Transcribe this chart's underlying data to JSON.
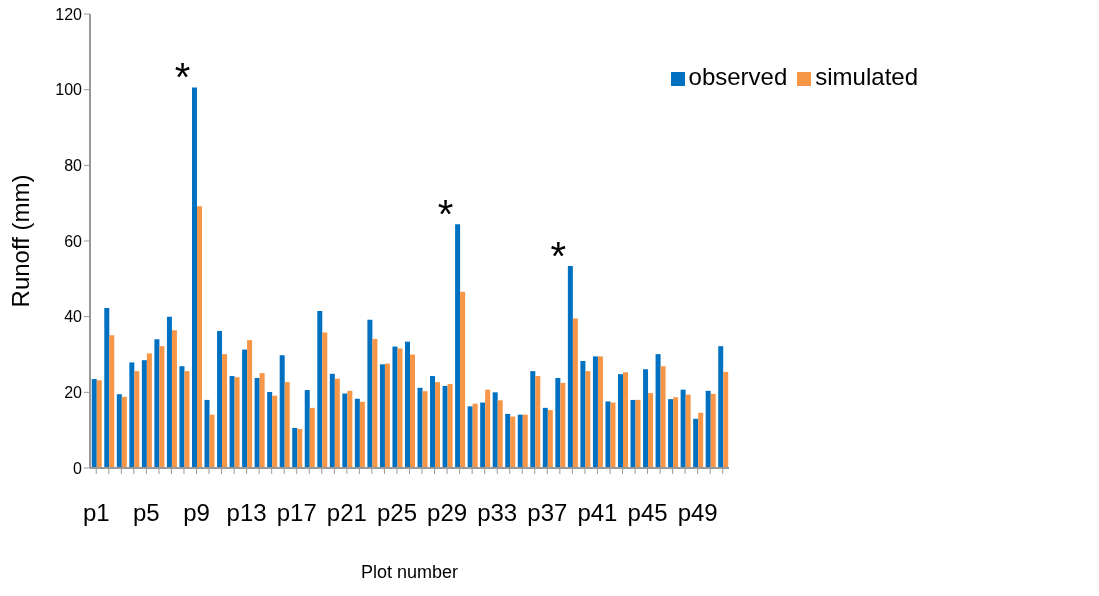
{
  "chart_data": {
    "type": "bar",
    "xlabel": "Plot number",
    "ylabel": "Runoff (mm)",
    "categories": [
      "p1",
      null,
      null,
      null,
      "p5",
      null,
      null,
      null,
      "p9",
      null,
      null,
      null,
      "p13",
      null,
      null,
      null,
      "p17",
      null,
      null,
      null,
      "p21",
      null,
      null,
      null,
      "p25",
      null,
      null,
      null,
      "p29",
      null,
      null,
      null,
      "p33",
      null,
      null,
      null,
      "p37",
      null,
      null,
      null,
      "p41",
      null,
      null,
      null,
      "p45",
      null,
      null,
      null,
      "p49",
      null,
      null
    ],
    "series": [
      {
        "name": "observed",
        "color": "#0070c0",
        "values": [
          23.5,
          42.3,
          19.5,
          27.9,
          28.5,
          34.0,
          40.0,
          26.9,
          100.6,
          18.0,
          36.2,
          24.3,
          31.3,
          23.8,
          20.1,
          29.8,
          10.6,
          20.6,
          41.5,
          24.9,
          19.7,
          18.3,
          39.2,
          27.4,
          32.1,
          33.4,
          21.2,
          24.3,
          21.7,
          64.4,
          16.3,
          17.3,
          20.0,
          14.3,
          14.1,
          25.6,
          15.9,
          23.8,
          53.4,
          28.3,
          29.5,
          17.6,
          24.8,
          18.0,
          26.1,
          30.1,
          18.2,
          20.7,
          13.0,
          20.4,
          32.2
        ]
      },
      {
        "name": "simulated",
        "color": "#f79646",
        "values": [
          23.2,
          35.1,
          18.8,
          25.6,
          30.3,
          32.2,
          36.4,
          25.6,
          69.2,
          14.1,
          30.1,
          24.0,
          33.8,
          25.1,
          19.1,
          22.7,
          10.3,
          15.9,
          35.8,
          23.6,
          20.4,
          17.5,
          34.1,
          27.6,
          31.6,
          30.0,
          20.3,
          22.7,
          22.2,
          46.6,
          17.0,
          20.7,
          17.9,
          13.6,
          14.1,
          24.3,
          15.3,
          22.5,
          39.5,
          25.6,
          29.5,
          17.3,
          25.3,
          18.0,
          19.8,
          26.9,
          18.7,
          19.4,
          14.6,
          19.6,
          25.4
        ]
      }
    ],
    "ylim": [
      0,
      120
    ],
    "yticks": [
      0,
      20,
      40,
      60,
      80,
      100,
      120
    ],
    "grid": false,
    "legend": "top right",
    "annotations": [
      "*",
      "*",
      "*"
    ]
  }
}
